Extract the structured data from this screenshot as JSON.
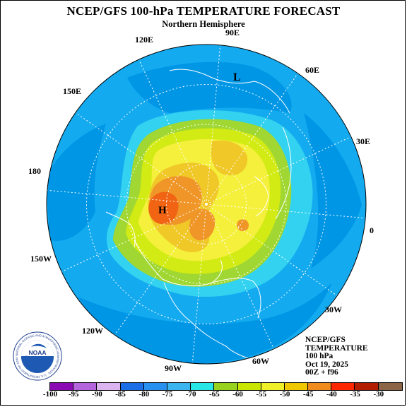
{
  "title": "NCEP/GFS 100-hPa TEMPERATURE FORECAST",
  "subtitle": "Northern Hemisphere",
  "longitudes": {
    "lon_90e": "90E",
    "lon_120e": "120E",
    "lon_60e": "60E",
    "lon_150e": "150E",
    "lon_30e": "30E",
    "lon_180": "180",
    "lon_0": "0",
    "lon_150w": "150W",
    "lon_30w": "30W",
    "lon_120w": "120W",
    "lon_90w": "90W",
    "lon_60w": "60W"
  },
  "markers": {
    "low": "L",
    "high": "H"
  },
  "info": {
    "model": "NCEP/GFS",
    "variable": "TEMPERATURE",
    "level": "100 hPa",
    "date": "Oct 19, 2025",
    "run": "00Z + f96"
  },
  "logo": {
    "text": "NOAA",
    "ring_text": "NATIONAL OCEANIC AND ATMOSPHERIC ADMINISTRATION · U.S. DEPARTMENT OF COMMERCE"
  },
  "colorbar": {
    "labels": [
      "-100",
      "-95",
      "-90",
      "-85",
      "-80",
      "-75",
      "-70",
      "-65",
      "-60",
      "-55",
      "-50",
      "-45",
      "-40",
      "-35",
      "-30"
    ],
    "colors": [
      "#8c0ab4",
      "#b464dc",
      "#dcb4f0",
      "#1c6ee6",
      "#2891f0",
      "#3cb4f0",
      "#28e6e6",
      "#96d21e",
      "#c8e600",
      "#f0f028",
      "#f0c800",
      "#f08c1e",
      "#ff2800",
      "#b41e00",
      "#8c6446"
    ]
  },
  "colors": {
    "outer_field": "#14aaf0",
    "cold_belt": "#0096e6",
    "cyan_ring": "#32d2f0",
    "green_ring": "#a0d732",
    "yellow_green": "#d2eb14",
    "yellow": "#f5f03c",
    "gold": "#f0c828",
    "orange": "#f09628",
    "red_orange": "#f06414"
  }
}
